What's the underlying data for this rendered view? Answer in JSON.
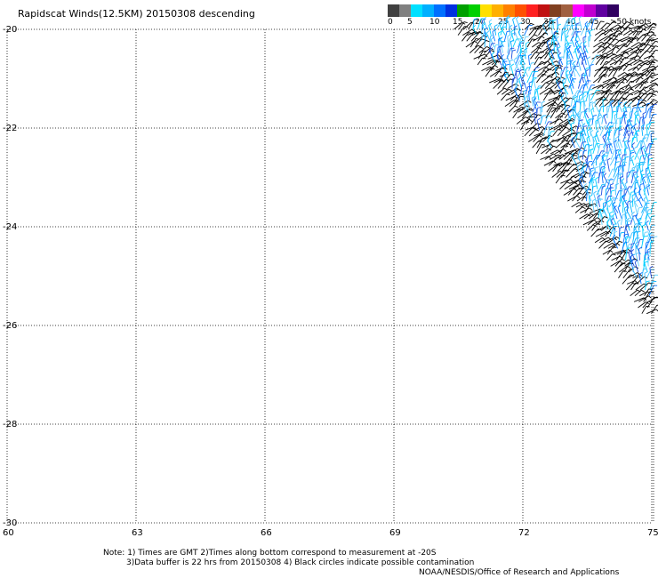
{
  "title": "Rapidscat Winds(12.5KM) 20150308 descending",
  "legend": {
    "colors": [
      "#404040",
      "#808080",
      "#00e0ff",
      "#00b0ff",
      "#0070ff",
      "#0030e0",
      "#00a000",
      "#00d000",
      "#ffe000",
      "#ffb000",
      "#ff8000",
      "#ff5000",
      "#ff2020",
      "#c01010",
      "#804020",
      "#a06040",
      "#ff00ff",
      "#c000d0",
      "#6000a0",
      "#300060"
    ],
    "labels": [
      "0",
      "5",
      "10",
      "15",
      "20",
      "25",
      "30",
      "35",
      "40",
      "45",
      ">50 knots"
    ]
  },
  "map": {
    "lat_labels": [
      "-20",
      "-22",
      "-24",
      "-26",
      "-28",
      "-30"
    ],
    "lon_labels": [
      "60",
      "63",
      "66",
      "69",
      "72",
      "75"
    ],
    "lat_range": [
      -30,
      -20
    ],
    "lon_range": [
      60,
      75
    ],
    "grid": "dotted",
    "swath": {
      "description_shown": "wind barbs",
      "black_barb_band_start": 72.0
    }
  },
  "notes": {
    "line1": "Note: 1) Times are GMT 2)Times along bottom correspond to measurement at -20S",
    "line2": "3)Data buffer is 22 hrs from 20150308 4) Black circles indicate possible contamination",
    "line3": "NOAA/NESDIS/Office of Research and Applications"
  }
}
